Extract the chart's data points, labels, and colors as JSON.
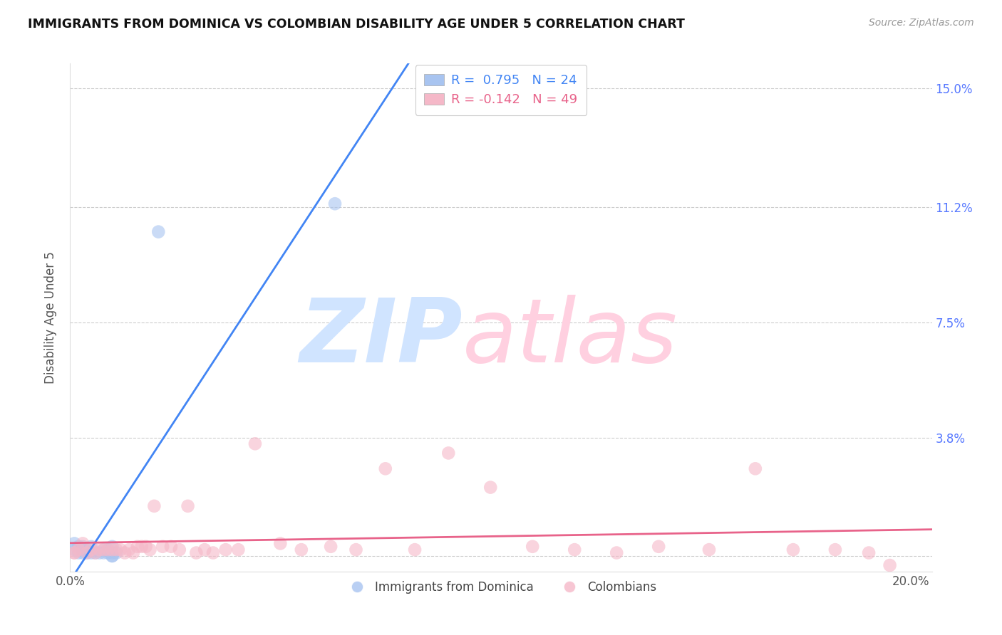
{
  "title": "IMMIGRANTS FROM DOMINICA VS COLOMBIAN DISABILITY AGE UNDER 5 CORRELATION CHART",
  "source": "Source: ZipAtlas.com",
  "ylabel": "Disability Age Under 5",
  "xlim": [
    0.0,
    0.205
  ],
  "ylim": [
    -0.005,
    0.158
  ],
  "right_yticks": [
    0.0,
    0.038,
    0.075,
    0.112,
    0.15
  ],
  "right_yticklabels": [
    "",
    "3.8%",
    "7.5%",
    "11.2%",
    "15.0%"
  ],
  "xticks": [
    0.0,
    0.2
  ],
  "xticklabels": [
    "0.0%",
    "20.0%"
  ],
  "blue_color": "#a8c4f0",
  "pink_color": "#f5b8c8",
  "blue_line_color": "#4285f4",
  "pink_line_color": "#e8638a",
  "blue_label": "Immigrants from Dominica",
  "pink_label": "Colombians",
  "blue_points_x": [
    0.001,
    0.001,
    0.002,
    0.002,
    0.003,
    0.003,
    0.003,
    0.004,
    0.004,
    0.005,
    0.005,
    0.006,
    0.007,
    0.008,
    0.008,
    0.009,
    0.009,
    0.01,
    0.01,
    0.01,
    0.01,
    0.011,
    0.021,
    0.063
  ],
  "blue_points_y": [
    0.002,
    0.004,
    0.001,
    0.003,
    0.001,
    0.002,
    0.003,
    0.001,
    0.002,
    0.001,
    0.003,
    0.001,
    0.001,
    0.002,
    0.001,
    0.001,
    0.002,
    0.001,
    0.0,
    0.003,
    0.0,
    0.001,
    0.104,
    0.113
  ],
  "pink_points_x": [
    0.001,
    0.001,
    0.002,
    0.003,
    0.004,
    0.005,
    0.006,
    0.007,
    0.008,
    0.009,
    0.01,
    0.011,
    0.012,
    0.013,
    0.014,
    0.015,
    0.016,
    0.017,
    0.018,
    0.019,
    0.02,
    0.022,
    0.024,
    0.026,
    0.028,
    0.03,
    0.032,
    0.034,
    0.037,
    0.04,
    0.044,
    0.05,
    0.055,
    0.062,
    0.068,
    0.075,
    0.082,
    0.09,
    0.1,
    0.11,
    0.12,
    0.13,
    0.14,
    0.152,
    0.163,
    0.172,
    0.182,
    0.19,
    0.195
  ],
  "pink_points_y": [
    0.001,
    0.001,
    0.002,
    0.004,
    0.001,
    0.002,
    0.001,
    0.002,
    0.002,
    0.002,
    0.002,
    0.002,
    0.002,
    0.001,
    0.002,
    0.001,
    0.003,
    0.003,
    0.003,
    0.002,
    0.016,
    0.003,
    0.003,
    0.002,
    0.016,
    0.001,
    0.002,
    0.001,
    0.002,
    0.002,
    0.036,
    0.004,
    0.002,
    0.003,
    0.002,
    0.028,
    0.002,
    0.033,
    0.022,
    0.003,
    0.002,
    0.001,
    0.003,
    0.002,
    0.028,
    0.002,
    0.002,
    0.001,
    -0.003
  ],
  "blue_r": 0.795,
  "blue_n": 24,
  "pink_r": -0.142,
  "pink_n": 49,
  "grid_yticks": [
    0.0,
    0.038,
    0.075,
    0.112,
    0.15
  ],
  "watermark_zip_color": "#d0e4ff",
  "watermark_atlas_color": "#ffd0e0"
}
